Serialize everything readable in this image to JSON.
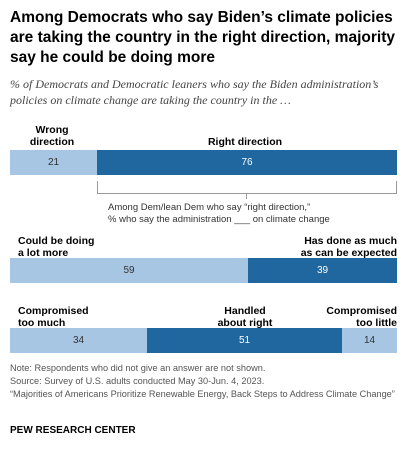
{
  "header": {
    "title": "Among Democrats who say Biden’s climate policies are taking the country in the right direction, majority say he could be doing more",
    "subtitle": "% of Democrats and Democratic leaners who say the Biden administration’s policies on climate change are taking the country in the …"
  },
  "chart_data": [
    {
      "type": "bar",
      "stacked": true,
      "orientation": "horizontal",
      "categories": [
        "Wrong direction",
        "Right direction"
      ],
      "values": [
        21,
        76
      ],
      "colors": [
        "#a6c6e3",
        "#20669f"
      ]
    },
    {
      "type": "bar",
      "stacked": true,
      "orientation": "horizontal",
      "categories": [
        "Could be doing a lot more",
        "Has done as much as can be expected"
      ],
      "values": [
        59,
        39
      ],
      "colors": [
        "#a6c6e3",
        "#20669f"
      ]
    },
    {
      "type": "bar",
      "stacked": true,
      "orientation": "horizontal",
      "categories": [
        "Compromised too much",
        "Handled about right",
        "Compromised too little"
      ],
      "values": [
        34,
        51,
        14
      ],
      "colors": [
        "#a6c6e3",
        "#20669f",
        "#a6c6e3"
      ]
    }
  ],
  "labels": {
    "wrong_1": "Wrong",
    "wrong_2": "direction",
    "right": "Right direction",
    "more_1": "Could be doing",
    "more_2": "a lot more",
    "done_1": "Has done as much",
    "done_2": "as can be expected",
    "cmuch_1": "Compromised",
    "cmuch_2": "too much",
    "handled_1": "Handled",
    "handled_2": "about right",
    "clittle_1": "Compromised",
    "clittle_2": "too little"
  },
  "bracket": {
    "line1": "Among Dem/lean Dem who say “right direction,”",
    "line2": "% who say the administration ___ on climate change"
  },
  "footer": {
    "note": "Note: Respondents who did not give an answer are not shown.",
    "source": "Source: Survey of U.S. adults conducted May 30-Jun. 4, 2023.",
    "report": "“Majorities of Americans Prioritize Renewable Energy, Back Steps to Address Climate Change”",
    "org": "PEW RESEARCH CENTER"
  }
}
